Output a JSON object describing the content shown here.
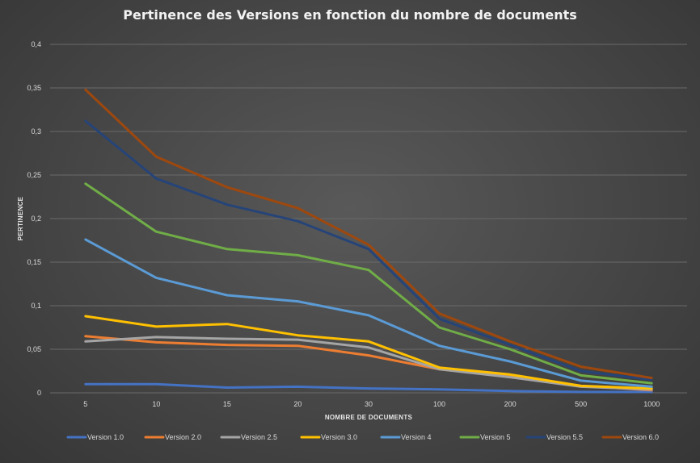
{
  "chart_data": {
    "type": "line",
    "title": "Pertinence des Versions en fonction du nombre de documents",
    "xlabel": "NOMBRE DE DOCUMENTS",
    "ylabel": "PERTINENCE",
    "categories": [
      "5",
      "10",
      "15",
      "20",
      "30",
      "100",
      "200",
      "500",
      "1000"
    ],
    "ylim": [
      0,
      0.4
    ],
    "yticks": [
      "0",
      "0,05",
      "0,1",
      "0,15",
      "0,2",
      "0,25",
      "0,3",
      "0,35",
      "0,4"
    ],
    "grid": true,
    "legend_position": "bottom",
    "series": [
      {
        "name": "Version 1.0",
        "color": "#4472c4",
        "values": [
          0.01,
          0.01,
          0.006,
          0.007,
          0.005,
          0.004,
          0.002,
          0.001,
          0.001
        ]
      },
      {
        "name": "Version 2.0",
        "color": "#ed7d31",
        "values": [
          0.065,
          0.058,
          0.055,
          0.054,
          0.043,
          0.027,
          0.019,
          0.008,
          0.003
        ]
      },
      {
        "name": "Version 2.5",
        "color": "#a5a5a5",
        "values": [
          0.059,
          0.064,
          0.062,
          0.061,
          0.052,
          0.027,
          0.018,
          0.007,
          0.004
        ]
      },
      {
        "name": "Version 3.0",
        "color": "#ffc000",
        "values": [
          0.088,
          0.076,
          0.079,
          0.066,
          0.059,
          0.029,
          0.021,
          0.008,
          0.005
        ]
      },
      {
        "name": "Version 4",
        "color": "#5b9bd5",
        "values": [
          0.176,
          0.132,
          0.112,
          0.105,
          0.089,
          0.054,
          0.036,
          0.014,
          0.007
        ]
      },
      {
        "name": "Version 5",
        "color": "#70ad47",
        "values": [
          0.24,
          0.185,
          0.165,
          0.158,
          0.141,
          0.075,
          0.05,
          0.02,
          0.011
        ]
      },
      {
        "name": "Version 5.5",
        "color": "#264478",
        "values": [
          0.312,
          0.246,
          0.216,
          0.197,
          0.165,
          0.085,
          0.055,
          0.025,
          0.015
        ]
      },
      {
        "name": "Version 6.0",
        "color": "#9e480e",
        "values": [
          0.348,
          0.271,
          0.236,
          0.212,
          0.17,
          0.091,
          0.059,
          0.03,
          0.017
        ]
      }
    ]
  }
}
